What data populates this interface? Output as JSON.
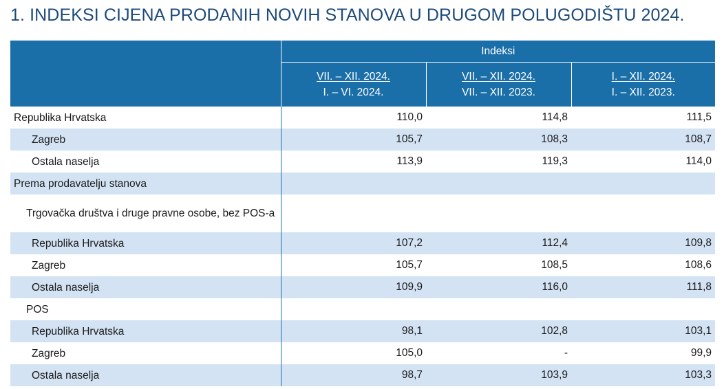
{
  "title": "1. INDEKSI CIJENA PRODANIH NOVIH STANOVA U DRUGOM POLUGODIŠTU 2024.",
  "header": {
    "group_label": "Indeksi",
    "columns": [
      {
        "numerator": "VII. – XII. 2024.",
        "denominator": "I. – VI. 2024."
      },
      {
        "numerator": "VII. – XII. 2024.",
        "denominator": "VII. – XII. 2023."
      },
      {
        "numerator": "I. – XII. 2024.",
        "denominator": "I. – XII. 2023."
      }
    ]
  },
  "rows": [
    {
      "label": "Republika Hrvatska",
      "values": [
        "110,0",
        "114,8",
        "111,5"
      ]
    },
    {
      "label": "Zagreb",
      "values": [
        "105,7",
        "108,3",
        "108,7"
      ]
    },
    {
      "label": "Ostala naselja",
      "values": [
        "113,9",
        "119,3",
        "114,0"
      ]
    },
    {
      "label": "Prema prodavatelju stanova",
      "values": [
        "",
        "",
        ""
      ]
    },
    {
      "label": "Trgovačka društva i druge pravne osobe, bez POS-a",
      "values": [
        "",
        "",
        ""
      ]
    },
    {
      "label": "Republika Hrvatska",
      "values": [
        "107,2",
        "112,4",
        "109,8"
      ]
    },
    {
      "label": "Zagreb",
      "values": [
        "105,7",
        "108,5",
        "108,6"
      ]
    },
    {
      "label": "Ostala naselja",
      "values": [
        "109,9",
        "116,0",
        "111,8"
      ]
    },
    {
      "label": "POS",
      "values": [
        "",
        "",
        ""
      ]
    },
    {
      "label": "Republika Hrvatska",
      "values": [
        "98,1",
        "102,8",
        "103,1"
      ]
    },
    {
      "label": "Zagreb",
      "values": [
        "105,0",
        "-",
        "99,9"
      ]
    },
    {
      "label": "Ostala naselja",
      "values": [
        "98,7",
        "103,9",
        "103,3"
      ]
    }
  ]
}
